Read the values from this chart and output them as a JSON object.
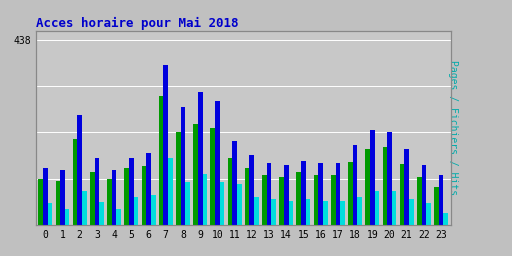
{
  "title": "Acces horaire pour Mai 2018",
  "ylabel_right": "Pages / Fichiers / Hits",
  "hours": [
    0,
    1,
    2,
    3,
    4,
    5,
    6,
    7,
    8,
    9,
    10,
    11,
    12,
    13,
    14,
    15,
    16,
    17,
    18,
    19,
    20,
    21,
    22,
    23
  ],
  "pages": [
    110,
    105,
    205,
    125,
    110,
    135,
    140,
    305,
    220,
    240,
    230,
    160,
    135,
    120,
    115,
    125,
    120,
    120,
    150,
    180,
    185,
    145,
    115,
    90
  ],
  "fichiers": [
    135,
    130,
    260,
    160,
    130,
    160,
    170,
    380,
    280,
    315,
    295,
    200,
    165,
    148,
    143,
    153,
    148,
    148,
    190,
    225,
    220,
    180,
    143,
    118
  ],
  "hits": [
    52,
    38,
    82,
    55,
    38,
    68,
    72,
    158,
    102,
    122,
    102,
    97,
    68,
    62,
    57,
    62,
    57,
    57,
    67,
    82,
    82,
    62,
    52,
    28
  ],
  "color_pages": "#009900",
  "color_fichiers": "#0000dd",
  "color_hits": "#00dddd",
  "background_color": "#c0c0c0",
  "plot_background": "#c8c8c8",
  "title_color": "#0000cc",
  "ylabel_color": "#00aaaa",
  "bar_width": 0.27,
  "ylim": [
    0,
    460
  ],
  "ytick_val": 438,
  "title_fontsize": 9,
  "tick_fontsize": 7,
  "ylabel_fontsize": 7,
  "grid_color": "#b0b0b0",
  "grid_levels": [
    0,
    110,
    220,
    330,
    438
  ]
}
